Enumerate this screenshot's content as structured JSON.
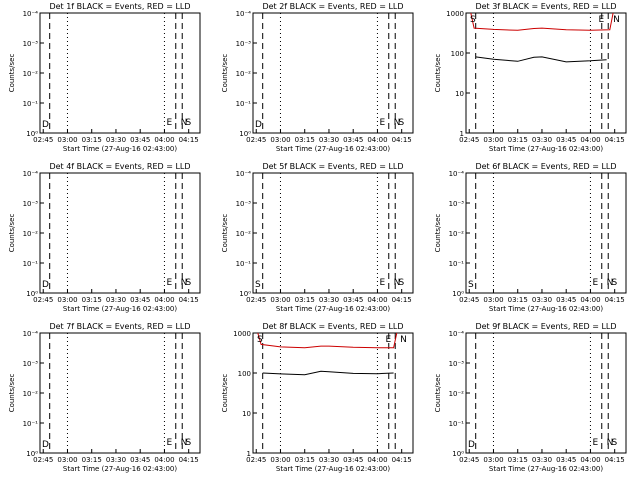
{
  "chart_data": [
    {
      "type": "line",
      "title": "Det 1f BLACK = Events, RED = LLD",
      "ylabel": "Counts/sec",
      "xlabel": "Start Time (27-Aug-16 02:43:00)",
      "x_ticks": [
        "02:45",
        "03:00",
        "03:15",
        "03:30",
        "03:45",
        "04:00",
        "04:15"
      ],
      "y_scale": "log",
      "y_ticks": [
        "10⁰",
        "10⁻¹",
        "10⁻²",
        "10⁻³",
        "10⁻⁴"
      ],
      "markers": [
        "D",
        "E",
        "N",
        "S"
      ],
      "series": []
    },
    {
      "type": "line",
      "title": "Det 2f BLACK = Events, RED = LLD",
      "ylabel": "Counts/sec",
      "xlabel": "Start Time (27-Aug-16 02:43:00)",
      "x_ticks": [
        "02:45",
        "03:00",
        "03:15",
        "03:30",
        "03:45",
        "04:00",
        "04:15"
      ],
      "y_scale": "log",
      "y_ticks": [
        "10⁰",
        "10⁻¹",
        "10⁻²",
        "10⁻³",
        "10⁻⁴"
      ],
      "markers": [
        "D",
        "E",
        "N",
        "S"
      ],
      "series": []
    },
    {
      "type": "line",
      "title": "Det 3f BLACK = Events, RED = LLD",
      "ylabel": "Counts/sec",
      "xlabel": "Start Time (27-Aug-16 02:43:00)",
      "x_ticks": [
        "02:45",
        "03:00",
        "03:15",
        "03:30",
        "03:45",
        "04:00",
        "04:15"
      ],
      "y_scale": "log",
      "y_ticks": [
        "1",
        "10",
        "100",
        "1000"
      ],
      "ylim": [
        1,
        1000
      ],
      "markers": [
        "S",
        "E",
        "N"
      ],
      "series": [
        {
          "color": "#cc0000",
          "x": [
            "02:46",
            "02:48",
            "03:00",
            "03:15",
            "03:25",
            "03:30",
            "03:45",
            "04:00",
            "04:12",
            "04:14"
          ],
          "y": [
            1000,
            420,
            390,
            370,
            410,
            420,
            380,
            370,
            380,
            1000
          ]
        },
        {
          "color": "#000000",
          "x": [
            "02:49",
            "03:00",
            "03:15",
            "03:25",
            "03:30",
            "03:45",
            "04:00",
            "04:10"
          ],
          "y": [
            80,
            70,
            62,
            78,
            80,
            60,
            64,
            68
          ]
        }
      ]
    },
    {
      "type": "line",
      "title": "Det 4f BLACK = Events, RED = LLD",
      "ylabel": "Counts/sec",
      "xlabel": "Start Time (27-Aug-16 02:43:00)",
      "x_ticks": [
        "02:45",
        "03:00",
        "03:15",
        "03:30",
        "03:45",
        "04:00",
        "04:15"
      ],
      "y_scale": "log",
      "y_ticks": [
        "10⁰",
        "10⁻¹",
        "10⁻²",
        "10⁻³",
        "10⁻⁴"
      ],
      "markers": [
        "D",
        "E",
        "N",
        "S"
      ],
      "series": []
    },
    {
      "type": "line",
      "title": "Det 5f BLACK = Events, RED = LLD",
      "ylabel": "Counts/sec",
      "xlabel": "Start Time (27-Aug-16 02:43:00)",
      "x_ticks": [
        "02:45",
        "03:00",
        "03:15",
        "03:30",
        "03:45",
        "04:00",
        "04:15"
      ],
      "y_scale": "log",
      "y_ticks": [
        "10⁰",
        "10⁻¹",
        "10⁻²",
        "10⁻³",
        "10⁻⁴"
      ],
      "markers": [
        "S",
        "E",
        "N",
        "S"
      ],
      "series": []
    },
    {
      "type": "line",
      "title": "Det 6f BLACK = Events, RED = LLD",
      "ylabel": "Counts/sec",
      "xlabel": "Start Time (27-Aug-16 02:43:00)",
      "x_ticks": [
        "02:45",
        "03:00",
        "03:15",
        "03:30",
        "03:45",
        "04:00",
        "04:15"
      ],
      "y_scale": "log",
      "y_ticks": [
        "10⁰",
        "10⁻¹",
        "10⁻²",
        "10⁻³",
        "10⁻⁴"
      ],
      "markers": [
        "S",
        "E",
        "N",
        "S"
      ],
      "series": []
    },
    {
      "type": "line",
      "title": "Det 7f BLACK = Events, RED = LLD",
      "ylabel": "Counts/sec",
      "xlabel": "Start Time (27-Aug-16 02:43:00)",
      "x_ticks": [
        "02:45",
        "03:00",
        "03:15",
        "03:30",
        "03:45",
        "04:00",
        "04:15"
      ],
      "y_scale": "log",
      "y_ticks": [
        "10⁰",
        "10⁻¹",
        "10⁻²",
        "10⁻³",
        "10⁻⁴"
      ],
      "markers": [
        "D",
        "E",
        "N",
        "S"
      ],
      "series": []
    },
    {
      "type": "line",
      "title": "Det 8f BLACK = Events, RED = LLD",
      "ylabel": "Counts/sec",
      "xlabel": "Start Time (27-Aug-16 02:43:00)",
      "x_ticks": [
        "02:45",
        "03:00",
        "03:15",
        "03:30",
        "03:45",
        "04:00",
        "04:15"
      ],
      "y_scale": "log",
      "y_ticks": [
        "1",
        "10",
        "100",
        "1000"
      ],
      "ylim": [
        1,
        1000
      ],
      "markers": [
        "S",
        "E",
        "N"
      ],
      "series": [
        {
          "color": "#cc0000",
          "x": [
            "02:46",
            "02:48",
            "03:00",
            "03:15",
            "03:25",
            "03:30",
            "03:45",
            "04:00",
            "04:10",
            "04:12"
          ],
          "y": [
            1000,
            520,
            450,
            430,
            470,
            470,
            440,
            430,
            430,
            1000
          ]
        },
        {
          "color": "#000000",
          "x": [
            "02:49",
            "03:00",
            "03:15",
            "03:25",
            "03:30",
            "03:45",
            "04:00",
            "04:10"
          ],
          "y": [
            100,
            95,
            90,
            110,
            108,
            98,
            96,
            100
          ]
        }
      ]
    },
    {
      "type": "line",
      "title": "Det 9f BLACK = Events, RED = LLD",
      "ylabel": "Counts/sec",
      "xlabel": "Start Time (27-Aug-16 02:43:00)",
      "x_ticks": [
        "02:45",
        "03:00",
        "03:15",
        "03:30",
        "03:45",
        "04:00",
        "04:15"
      ],
      "y_scale": "log",
      "y_ticks": [
        "10⁰",
        "10⁻¹",
        "10⁻²",
        "10⁻³",
        "10⁻⁴"
      ],
      "markers": [
        "D",
        "E",
        "N",
        "S"
      ],
      "series": []
    }
  ]
}
